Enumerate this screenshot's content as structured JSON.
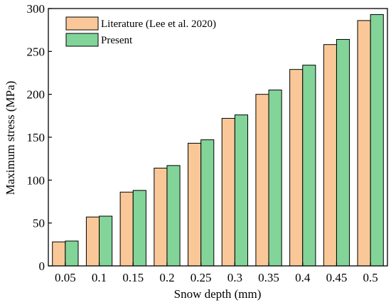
{
  "chart_data": {
    "type": "bar",
    "categories": [
      "0.05",
      "0.1",
      "0.15",
      "0.2",
      "0.25",
      "0.3",
      "0.35",
      "0.4",
      "0.45",
      "0.5"
    ],
    "series": [
      {
        "name": "Literature (Lee et al. 2020)",
        "color": "#FAC898",
        "values": [
          28,
          57,
          86,
          114,
          143,
          172,
          200,
          229,
          258,
          286
        ]
      },
      {
        "name": "Present",
        "color": "#82D499",
        "values": [
          29,
          58,
          88,
          117,
          147,
          176,
          205,
          234,
          264,
          293
        ]
      }
    ],
    "xlabel": "Snow depth (mm)",
    "ylabel": "Maximum stress (MPa)",
    "ylim": [
      0,
      300
    ],
    "yticks": [
      "0",
      "50",
      "100",
      "150",
      "200",
      "250",
      "300"
    ],
    "grid": false,
    "legend_position": "top-left"
  }
}
